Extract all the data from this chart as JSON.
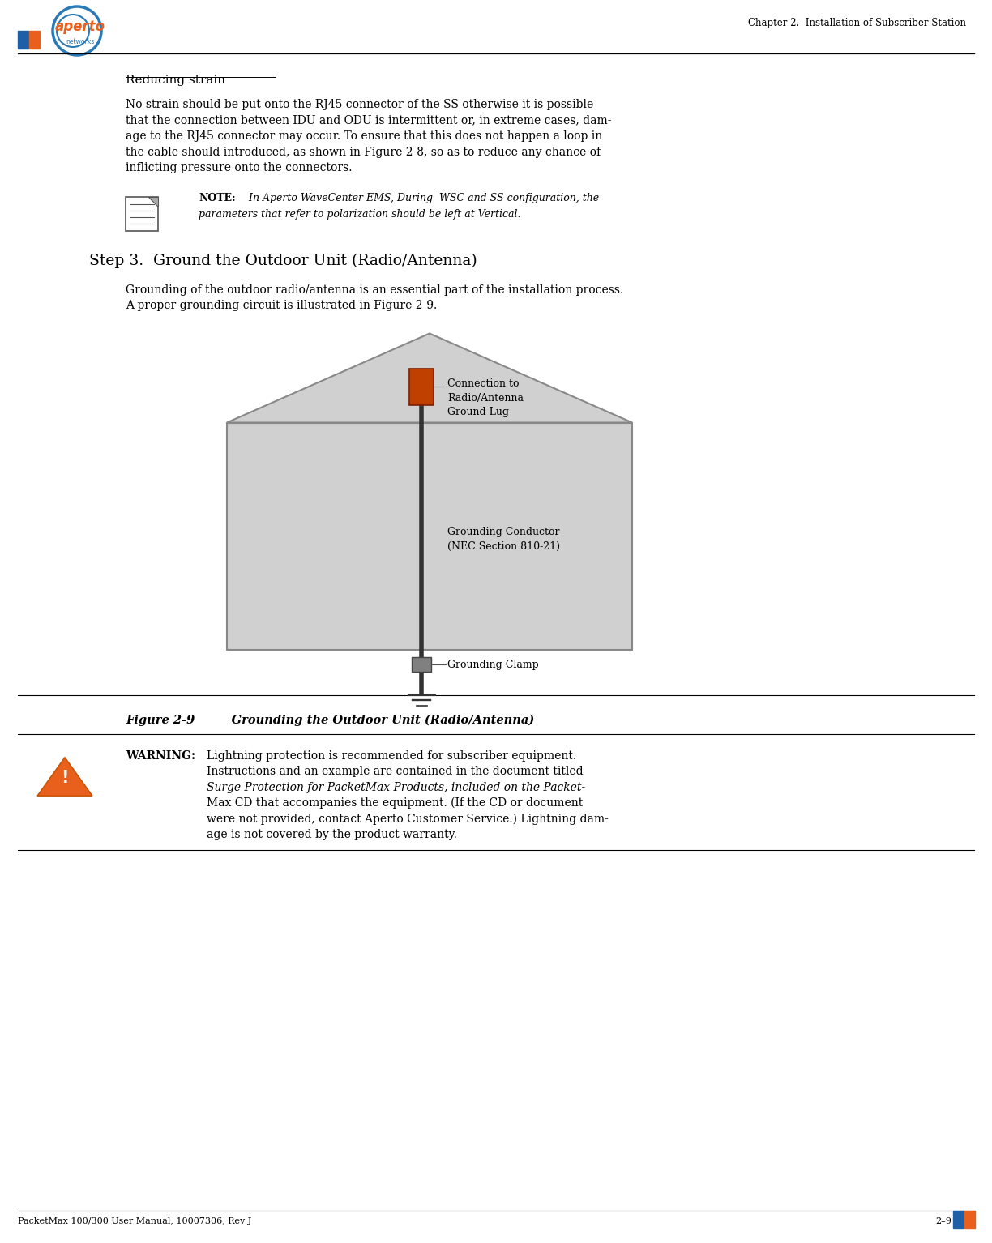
{
  "page_width": 12.24,
  "page_height": 15.34,
  "bg_color": "#ffffff",
  "header_chapter": "Chapter 2.  Installation of Subscriber Station",
  "footer_left": "PacketMax 100/300 User Manual, 10007306, Rev J",
  "footer_right": "2–9",
  "accent_blue": "#1e5fa8",
  "accent_orange": "#e8601c",
  "section_title": "Reducing strain",
  "note_label": "NOTE:",
  "note_body1": " In Aperto WaveCenter EMS, During  WSC and SS configuration, the",
  "note_body2": "parameters that refer to polarization should be left at Vertical.",
  "step_title": "Step 3.  Ground the Outdoor Unit (Radio/Antenna)",
  "step_line1": "Grounding of the outdoor radio/antenna is an essential part of the installation process.",
  "step_line2": "A proper grounding circuit is illustrated in Figure 2-9.",
  "figure_caption_label": "Figure 2-9",
  "figure_caption_text": "     Grounding the Outdoor Unit (Radio/Antenna)",
  "warning_label": "WARNING:",
  "warn_line1": "Lightning protection is recommended for subscriber equipment.",
  "warn_line2": "Instructions and an example are contained in the document titled",
  "warn_line3": "Surge Protection for PacketMax Products, included on the Packet-",
  "warn_line4": "Max CD that accompanies the equipment. (If the CD or document",
  "warn_line5": "were not provided, contact Aperto Customer Service.) Lightning dam-",
  "warn_line6": "age is not covered by the product warranty.",
  "body_line1": "No strain should be put onto the RJ45 connector of the SS otherwise it is possible",
  "body_line2": "that the connection between IDU and ODU is intermittent or, in extreme cases, dam-",
  "body_line3": "age to the RJ45 connector may occur. To ensure that this does not happen a loop in",
  "body_line4": "the cable should introduced, as shown in Figure 2-8, so as to reduce any chance of",
  "body_line5": "inflicting pressure onto the connectors.",
  "label_connection": "Connection to\nRadio/Antenna\nGround Lug",
  "label_conductor1": "Grounding Conductor",
  "label_conductor2": "(NEC Section 810-21)",
  "label_clamp": "Grounding Clamp",
  "house_fill": "#d0d0d0",
  "house_stroke": "#888888",
  "cable_color": "#333333",
  "connector_color": "#c04000",
  "clamp_color": "#808080"
}
